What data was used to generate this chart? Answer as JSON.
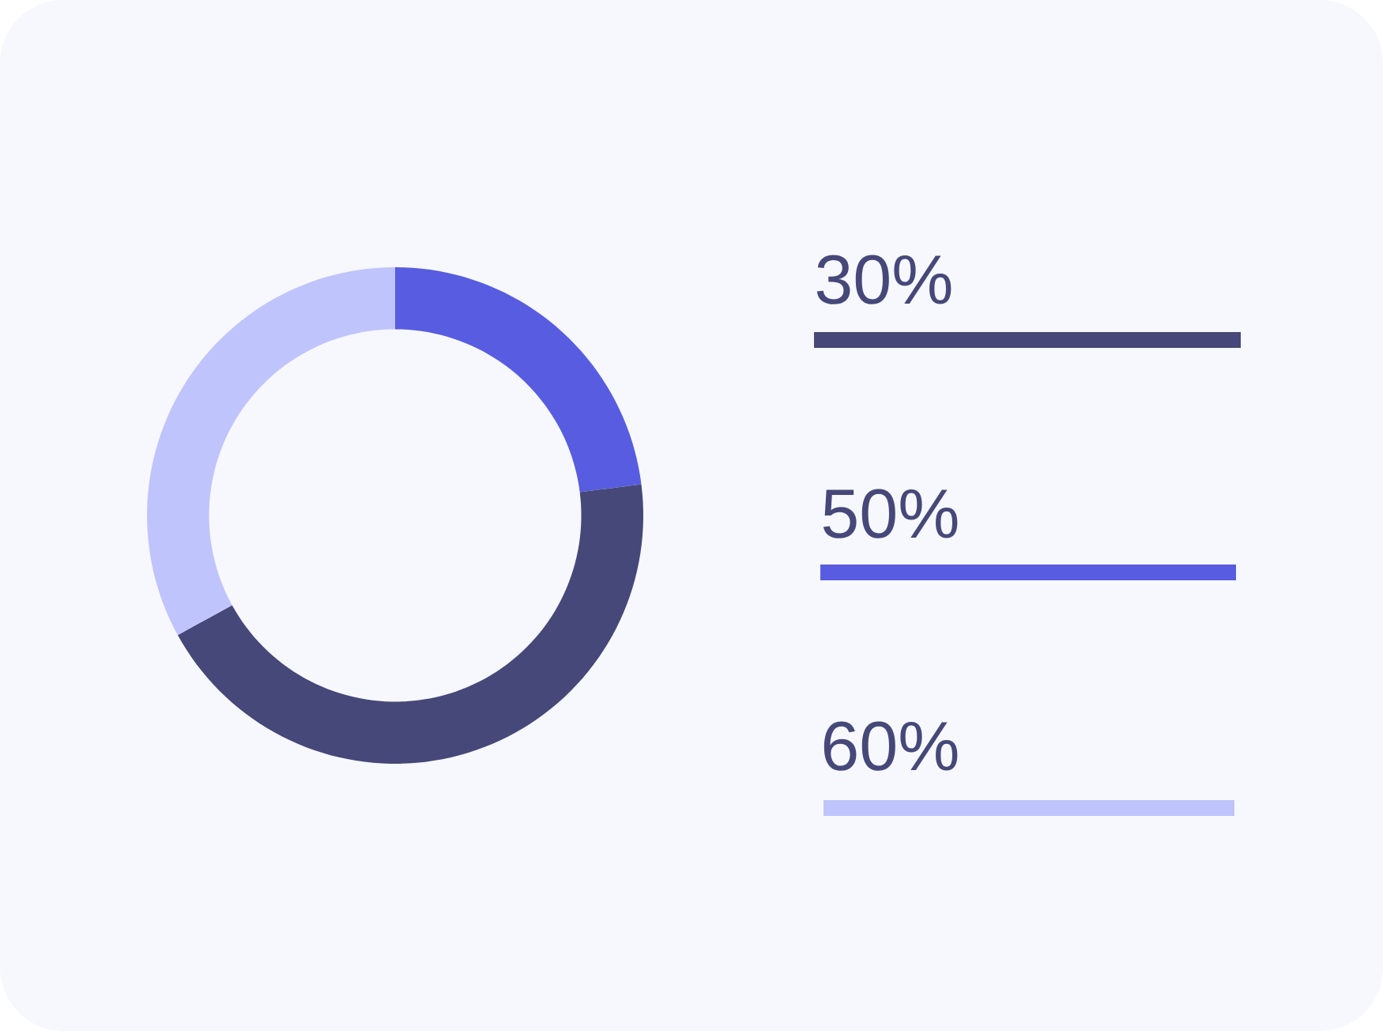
{
  "chart_data": [
    {
      "type": "donut",
      "categories": [
        null,
        null,
        null
      ],
      "values": [
        23,
        44,
        33
      ],
      "colors": [
        "#575ce0",
        "#464879",
        "#c0c4fc"
      ]
    },
    {
      "type": "other",
      "annotations": [
        "30%",
        "50%",
        "60%"
      ],
      "colors": [
        "#464879",
        "#575ce0",
        "#c0c4fc"
      ]
    }
  ]
}
